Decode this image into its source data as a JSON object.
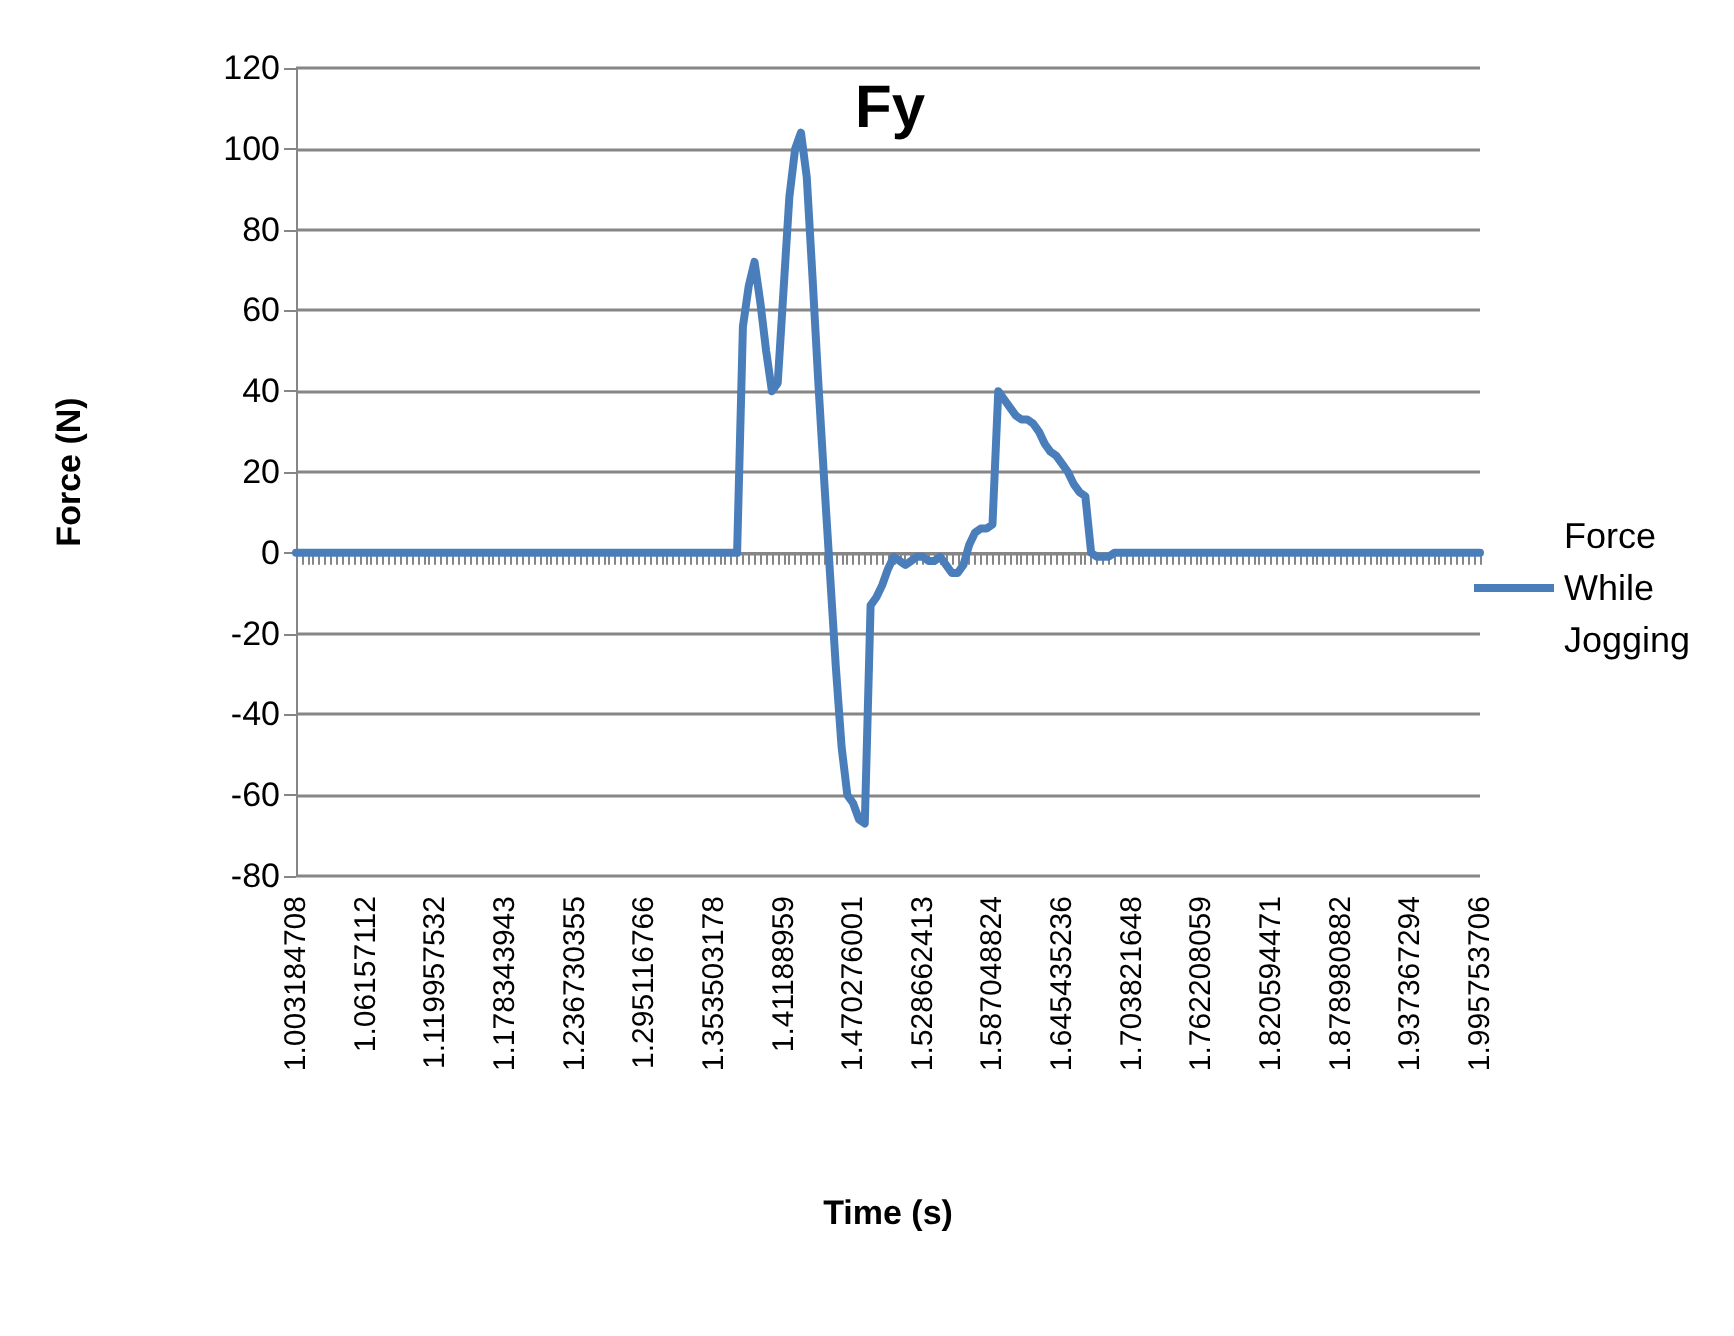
{
  "chart_data": {
    "type": "line",
    "title": "Fy",
    "xlabel": "Time (s)",
    "ylabel": "Force (N)",
    "categories": [
      "1.003184708",
      null,
      null,
      null,
      null,
      null,
      null,
      null,
      null,
      null,
      null,
      null,
      "1.06157112",
      null,
      null,
      null,
      null,
      null,
      null,
      null,
      null,
      null,
      null,
      null,
      "1.119957532",
      null,
      null,
      null,
      null,
      null,
      null,
      null,
      null,
      null,
      null,
      null,
      "1.178343943",
      null,
      null,
      null,
      null,
      null,
      null,
      null,
      null,
      null,
      null,
      null,
      "1.236730355",
      null,
      null,
      null,
      null,
      null,
      null,
      null,
      null,
      null,
      null,
      null,
      "1.295116766",
      null,
      null,
      null,
      null,
      null,
      null,
      null,
      null,
      null,
      null,
      null,
      "1.353503178",
      null,
      null,
      null,
      null,
      null,
      null,
      null,
      null,
      null,
      null,
      null,
      "1.41188959",
      null,
      null,
      null,
      null,
      null,
      null,
      null,
      null,
      null,
      null,
      null,
      "1.470276001",
      null,
      null,
      null,
      null,
      null,
      null,
      null,
      null,
      null,
      null,
      null,
      "1.528662413",
      null,
      null,
      null,
      null,
      null,
      null,
      null,
      null,
      null,
      null,
      null,
      "1.587048824",
      null,
      null,
      null,
      null,
      null,
      null,
      null,
      null,
      null,
      null,
      null,
      "1.645435236",
      null,
      null,
      null,
      null,
      null,
      null,
      null,
      null,
      null,
      null,
      null,
      "1.703821648",
      null,
      null,
      null,
      null,
      null,
      null,
      null,
      null,
      null,
      null,
      null,
      "1.762208059",
      null,
      null,
      null,
      null,
      null,
      null,
      null,
      null,
      null,
      null,
      null,
      "1.820594471",
      null,
      null,
      null,
      null,
      null,
      null,
      null,
      null,
      null,
      null,
      null,
      "1.878980882",
      null,
      null,
      null,
      null,
      null,
      null,
      null,
      null,
      null,
      null,
      null,
      "1.937367294",
      null,
      null,
      null,
      null,
      null,
      null,
      null,
      null,
      null,
      null,
      null,
      "1.995753706"
    ],
    "series": [
      {
        "name": "Force While Jogging",
        "color": "#4a7ebb",
        "values": [
          0,
          0,
          0,
          0,
          0,
          0,
          0,
          0,
          0,
          0,
          0,
          0,
          0,
          0,
          0,
          0,
          0,
          0,
          0,
          0,
          0,
          0,
          0,
          0,
          0,
          0,
          0,
          0,
          0,
          0,
          0,
          0,
          0,
          0,
          0,
          0,
          0,
          0,
          0,
          0,
          0,
          0,
          0,
          0,
          0,
          0,
          0,
          0,
          0,
          0,
          0,
          0,
          0,
          0,
          0,
          0,
          0,
          0,
          0,
          0,
          0,
          0,
          0,
          0,
          0,
          0,
          0,
          0,
          0,
          0,
          0,
          0,
          0,
          0,
          0,
          0,
          0,
          56,
          66,
          72,
          62,
          50,
          40,
          42,
          65,
          88,
          100,
          104,
          93,
          68,
          42,
          18,
          -5,
          -28,
          -48,
          -60,
          -62,
          -66,
          -67,
          -13,
          -11,
          -8,
          -4,
          -1,
          -2,
          -3,
          -2,
          -1,
          -1,
          -2,
          -2,
          -1,
          -3,
          -5,
          -5,
          -3,
          2,
          5,
          6,
          6,
          7,
          40,
          38,
          36,
          34,
          33,
          33,
          32,
          30,
          27,
          25,
          24,
          22,
          20,
          17,
          15,
          14,
          0,
          -1,
          -1,
          -1,
          0,
          0,
          0,
          0,
          0,
          0,
          0,
          0,
          0,
          0,
          0,
          0,
          0,
          0,
          0,
          0,
          0,
          0,
          0,
          0,
          0,
          0,
          0,
          0,
          0,
          0,
          0,
          0,
          0,
          0,
          0,
          0,
          0,
          0,
          0,
          0,
          0,
          0,
          0,
          0,
          0,
          0,
          0,
          0,
          0,
          0,
          0,
          0,
          0,
          0,
          0,
          0,
          0,
          0,
          0,
          0,
          0,
          0,
          0,
          0,
          0,
          0,
          0,
          0
        ]
      }
    ],
    "ylim": [
      -80,
      120
    ],
    "yticks": [
      -80,
      -60,
      -40,
      -20,
      0,
      20,
      40,
      60,
      80,
      100,
      120
    ],
    "grid": "y",
    "legend": "right",
    "marker": "none",
    "line_style": "solid"
  }
}
